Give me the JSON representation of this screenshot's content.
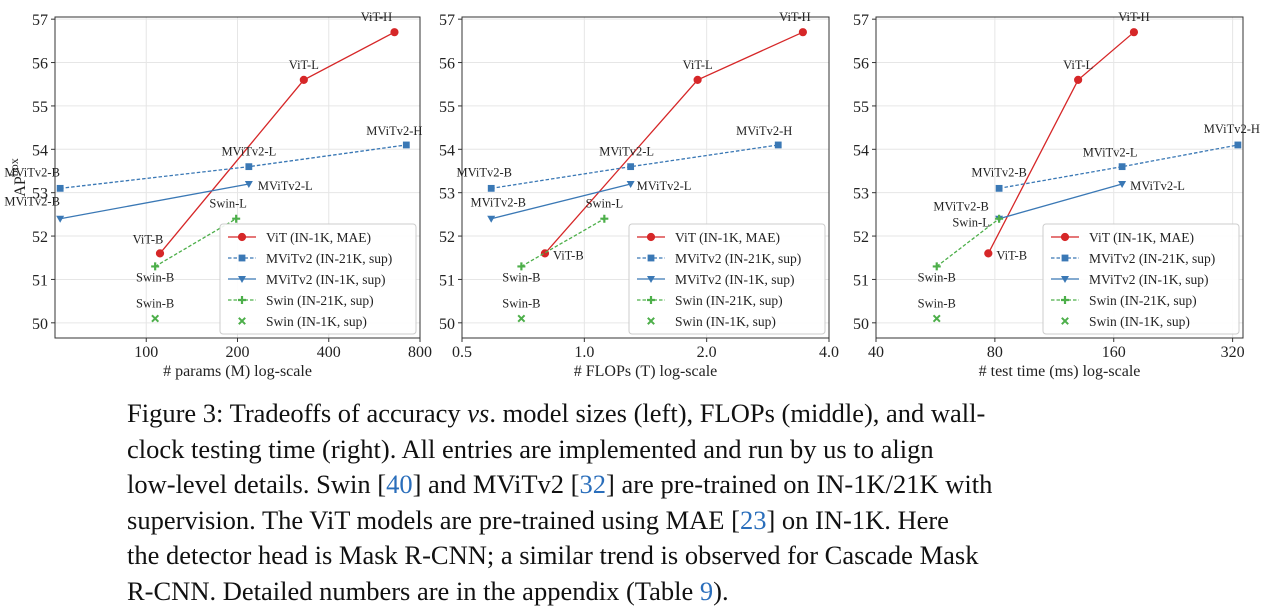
{
  "chart_data": [
    {
      "type": "line",
      "xlabel": "# params (M) log-scale",
      "ylabel": "AP",
      "ylabel_superscript": "box",
      "x_scale": "log",
      "xlim": [
        50,
        800
      ],
      "ylim": [
        49.65,
        57.05
      ],
      "x_ticks": [
        100,
        200,
        400,
        800
      ],
      "y_ticks": [
        50,
        51,
        52,
        53,
        54,
        55,
        56,
        57
      ],
      "grid": true,
      "legend_position": "lower-right",
      "series": [
        {
          "name": "ViT (IN-1K, MAE)",
          "color": "#d62728",
          "marker": "circle",
          "linestyle": "solid",
          "x": [
            111,
            331,
            659
          ],
          "y": [
            51.6,
            55.6,
            56.7
          ],
          "labels": [
            "ViT-B",
            "ViT-L",
            "ViT-H"
          ]
        },
        {
          "name": "MViTv2 (IN-21K, sup)",
          "color": "#3a78b5",
          "marker": "square",
          "linestyle": "dashed",
          "x": [
            52,
            218,
            721
          ],
          "y": [
            53.1,
            53.6,
            54.1
          ],
          "labels": [
            "MViTv2-B",
            "MViTv2-L",
            "MViTv2-H"
          ]
        },
        {
          "name": "MViTv2 (IN-1K, sup)",
          "color": "#3a78b5",
          "marker": "triangle-down",
          "linestyle": "solid",
          "x": [
            52,
            218
          ],
          "y": [
            52.4,
            53.2
          ],
          "labels": [
            "MViTv2-B",
            "MViTv2-L"
          ]
        },
        {
          "name": "Swin (IN-21K, sup)",
          "color": "#4daf4a",
          "marker": "plus",
          "linestyle": "dashed",
          "x": [
            107,
            198
          ],
          "y": [
            51.3,
            52.4
          ],
          "labels": [
            "Swin-B",
            "Swin-L"
          ]
        },
        {
          "name": "Swin (IN-1K, sup)",
          "color": "#4daf4a",
          "marker": "x",
          "linestyle": "none",
          "x": [
            107
          ],
          "y": [
            50.1
          ],
          "labels": [
            "Swin-B"
          ]
        }
      ]
    },
    {
      "type": "line",
      "xlabel": "# FLOPs (T) log-scale",
      "ylabel": "",
      "x_scale": "log",
      "xlim": [
        0.5,
        4.0
      ],
      "ylim": [
        49.65,
        57.05
      ],
      "x_ticks": [
        0.5,
        1.0,
        2.0,
        4.0
      ],
      "x_tick_labels": [
        "0.5",
        "1.0",
        "2.0",
        "4.0"
      ],
      "y_ticks": [
        50,
        51,
        52,
        53,
        54,
        55,
        56,
        57
      ],
      "grid": true,
      "legend_position": "lower-right",
      "series": [
        {
          "name": "ViT (IN-1K, MAE)",
          "color": "#d62728",
          "marker": "circle",
          "linestyle": "solid",
          "x": [
            0.8,
            1.9,
            3.45
          ],
          "y": [
            51.6,
            55.6,
            56.7
          ],
          "labels": [
            "ViT-B",
            "ViT-L",
            "ViT-H"
          ]
        },
        {
          "name": "MViTv2 (IN-21K, sup)",
          "color": "#3a78b5",
          "marker": "square",
          "linestyle": "dashed",
          "x": [
            0.59,
            1.3,
            3.0
          ],
          "y": [
            53.1,
            53.6,
            54.1
          ],
          "labels": [
            "MViTv2-B",
            "MViTv2-L",
            "MViTv2-H"
          ]
        },
        {
          "name": "MViTv2 (IN-1K, sup)",
          "color": "#3a78b5",
          "marker": "triangle-down",
          "linestyle": "solid",
          "x": [
            0.59,
            1.3
          ],
          "y": [
            52.4,
            53.2
          ],
          "labels": [
            "MViTv2-B",
            "MViTv2-L"
          ]
        },
        {
          "name": "Swin (IN-21K, sup)",
          "color": "#4daf4a",
          "marker": "plus",
          "linestyle": "dashed",
          "x": [
            0.7,
            1.12
          ],
          "y": [
            51.3,
            52.4
          ],
          "labels": [
            "Swin-B",
            "Swin-L"
          ]
        },
        {
          "name": "Swin (IN-1K, sup)",
          "color": "#4daf4a",
          "marker": "x",
          "linestyle": "none",
          "x": [
            0.7
          ],
          "y": [
            50.1
          ],
          "labels": [
            "Swin-B"
          ]
        }
      ]
    },
    {
      "type": "line",
      "xlabel": "# test time (ms) log-scale",
      "ylabel": "",
      "x_scale": "log",
      "xlim": [
        40,
        340
      ],
      "ylim": [
        49.65,
        57.05
      ],
      "x_ticks": [
        40,
        80,
        160,
        320
      ],
      "y_ticks": [
        50,
        51,
        52,
        53,
        54,
        55,
        56,
        57
      ],
      "grid": true,
      "legend_position": "lower-right",
      "series": [
        {
          "name": "ViT (IN-1K, MAE)",
          "color": "#d62728",
          "marker": "circle",
          "linestyle": "solid",
          "x": [
            77,
            130,
            180
          ],
          "y": [
            51.6,
            55.6,
            56.7
          ],
          "labels": [
            "ViT-B",
            "ViT-L",
            "ViT-H"
          ]
        },
        {
          "name": "MViTv2 (IN-21K, sup)",
          "color": "#3a78b5",
          "marker": "square",
          "linestyle": "dashed",
          "x": [
            82,
            168,
            330
          ],
          "y": [
            53.1,
            53.6,
            54.1
          ],
          "labels": [
            "MViTv2-B",
            "MViTv2-L",
            "MViTv2-H"
          ]
        },
        {
          "name": "MViTv2 (IN-1K, sup)",
          "color": "#3a78b5",
          "marker": "triangle-down",
          "linestyle": "solid",
          "x": [
            82,
            168
          ],
          "y": [
            52.4,
            53.2
          ],
          "labels": [
            "MViTv2-B",
            "MViTv2-L"
          ]
        },
        {
          "name": "Swin (IN-21K, sup)",
          "color": "#4daf4a",
          "marker": "plus",
          "linestyle": "dashed",
          "x": [
            57,
            82
          ],
          "y": [
            51.3,
            52.4
          ],
          "labels": [
            "Swin-B",
            "Swin-L"
          ]
        },
        {
          "name": "Swin (IN-1K, sup)",
          "color": "#4daf4a",
          "marker": "x",
          "linestyle": "none",
          "x": [
            57
          ],
          "y": [
            50.1
          ],
          "labels": [
            "Swin-B"
          ]
        }
      ]
    }
  ],
  "caption": {
    "line1_a": "Figure 3: Tradeoffs of accuracy ",
    "line1_vs": "vs",
    "line1_b": ". model sizes (left), FLOPs (middle), and wall-",
    "line2": "clock testing time (right). All entries are implemented and run by us to align",
    "line3_a": "low-level details. Swin [",
    "ref_40": "40",
    "line3_b": "] and MViTv2 [",
    "ref_32": "32",
    "line3_c": "] are pre-trained on IN-1K/21K with",
    "line4_a": "supervision. The ViT models are pre-trained using MAE [",
    "ref_23": "23",
    "line4_b": "] on IN-1K. Here",
    "line5": "the detector head is Mask R-CNN; a similar trend is observed for Cascade Mask",
    "line6_a": "R-CNN. Detailed numbers are in the appendix (Table ",
    "ref_9": "9",
    "line6_b": ")."
  }
}
